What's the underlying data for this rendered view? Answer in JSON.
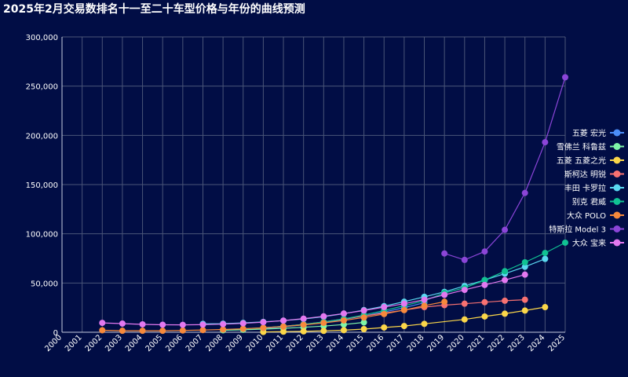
{
  "chart_data": {
    "type": "line",
    "title": "2025年2月交易数排名十一至二十车型价格与年份的曲线预测",
    "x": [
      2000,
      2001,
      2002,
      2003,
      2004,
      2005,
      2006,
      2007,
      2008,
      2009,
      2010,
      2011,
      2012,
      2013,
      2014,
      2015,
      2016,
      2017,
      2018,
      2019,
      2020,
      2021,
      2022,
      2023,
      2024,
      2025
    ],
    "xlim": [
      2000,
      2025
    ],
    "ylim": [
      0,
      300000
    ],
    "yticks": [
      0,
      50000,
      100000,
      150000,
      200000,
      250000,
      300000
    ],
    "ytick_labels": [
      "0",
      "50,000",
      "100,000",
      "150,000",
      "200,000",
      "250,000",
      "300,000"
    ],
    "grid": true,
    "legend_position": "right",
    "series": [
      {
        "name": "五菱 宏光",
        "color": "#4b8df8",
        "points": [
          [
            2010,
            4000
          ],
          [
            2011,
            5500
          ],
          [
            2012,
            7500
          ],
          [
            2013,
            10000
          ],
          [
            2014,
            13000
          ],
          [
            2015,
            16500
          ],
          [
            2016,
            20500
          ],
          [
            2017,
            25000
          ],
          [
            2018,
            30000
          ]
        ]
      },
      {
        "name": "雪佛兰 科鲁兹",
        "color": "#7ef5a8",
        "points": [
          [
            2008,
            2000
          ],
          [
            2009,
            2500
          ],
          [
            2010,
            3200
          ],
          [
            2011,
            4000
          ],
          [
            2012,
            5000
          ],
          [
            2013,
            6200
          ],
          [
            2014,
            7800
          ],
          [
            2015,
            10000
          ]
        ]
      },
      {
        "name": "五菱 五菱之光",
        "color": "#fbd649",
        "points": [
          [
            2010,
            300
          ],
          [
            2011,
            600
          ],
          [
            2012,
            900
          ],
          [
            2013,
            1400
          ],
          [
            2014,
            2100
          ],
          [
            2015,
            3200
          ],
          [
            2016,
            4800
          ],
          [
            2017,
            6300
          ],
          [
            2018,
            8500
          ],
          [
            2020,
            13000
          ],
          [
            2021,
            16000
          ],
          [
            2022,
            18800
          ],
          [
            2023,
            22000
          ],
          [
            2024,
            25500
          ]
        ]
      },
      {
        "name": "斯柯达 明锐",
        "color": "#f87171",
        "points": [
          [
            2010,
            4500
          ],
          [
            2011,
            6000
          ],
          [
            2012,
            8000
          ],
          [
            2013,
            10500
          ],
          [
            2014,
            13500
          ],
          [
            2015,
            16500
          ],
          [
            2016,
            19500
          ],
          [
            2017,
            22500
          ],
          [
            2018,
            25500
          ],
          [
            2019,
            27500
          ],
          [
            2020,
            29000
          ],
          [
            2021,
            30500
          ],
          [
            2022,
            32000
          ],
          [
            2023,
            33000
          ]
        ]
      },
      {
        "name": "丰田 卡罗拉",
        "color": "#5ad8f0",
        "points": [
          [
            2007,
            8500
          ],
          [
            2008,
            8700
          ],
          [
            2009,
            9500
          ],
          [
            2010,
            10500
          ],
          [
            2011,
            11800
          ],
          [
            2012,
            13500
          ],
          [
            2013,
            15800
          ],
          [
            2014,
            18800
          ],
          [
            2015,
            22500
          ],
          [
            2016,
            26500
          ],
          [
            2017,
            31000
          ],
          [
            2018,
            36000
          ],
          [
            2019,
            41000
          ],
          [
            2020,
            47000
          ],
          [
            2021,
            53000
          ],
          [
            2022,
            59500
          ],
          [
            2023,
            66500
          ],
          [
            2024,
            74500
          ]
        ]
      },
      {
        "name": "别克 君威",
        "color": "#10c293",
        "points": [
          [
            2009,
            3500
          ],
          [
            2010,
            4500
          ],
          [
            2011,
            6000
          ],
          [
            2012,
            8000
          ],
          [
            2013,
            10500
          ],
          [
            2014,
            13500
          ],
          [
            2015,
            17500
          ],
          [
            2016,
            22000
          ],
          [
            2017,
            27000
          ],
          [
            2018,
            32000
          ],
          [
            2019,
            40000
          ],
          [
            2020,
            45000
          ],
          [
            2021,
            53000
          ],
          [
            2022,
            62000
          ],
          [
            2023,
            71000
          ],
          [
            2024,
            80500
          ],
          [
            2025,
            91000
          ]
        ]
      },
      {
        "name": "大众 POLO",
        "color": "#f7893c",
        "points": [
          [
            2002,
            2000
          ],
          [
            2003,
            1500
          ],
          [
            2004,
            1500
          ],
          [
            2005,
            1500
          ],
          [
            2006,
            1800
          ],
          [
            2007,
            2200
          ],
          [
            2008,
            2800
          ],
          [
            2009,
            3500
          ],
          [
            2010,
            4500
          ],
          [
            2011,
            5800
          ],
          [
            2012,
            7500
          ],
          [
            2013,
            9500
          ],
          [
            2014,
            12000
          ],
          [
            2015,
            15000
          ],
          [
            2016,
            18500
          ],
          [
            2017,
            22500
          ],
          [
            2018,
            27000
          ],
          [
            2019,
            31000
          ]
        ]
      },
      {
        "name": "特斯拉 Model 3",
        "color": "#8b45d8",
        "points": [
          [
            2019,
            80000
          ],
          [
            2020,
            73500
          ],
          [
            2021,
            82000
          ],
          [
            2022,
            104000
          ],
          [
            2023,
            141500
          ],
          [
            2024,
            193000
          ],
          [
            2025,
            259000
          ]
        ]
      },
      {
        "name": "大众 宝来",
        "color": "#e378f0",
        "points": [
          [
            2002,
            9500
          ],
          [
            2003,
            8800
          ],
          [
            2004,
            8000
          ],
          [
            2005,
            7600
          ],
          [
            2006,
            7500
          ],
          [
            2007,
            7700
          ],
          [
            2008,
            8200
          ],
          [
            2009,
            9000
          ],
          [
            2010,
            10200
          ],
          [
            2011,
            11800
          ],
          [
            2012,
            13800
          ],
          [
            2013,
            16200
          ],
          [
            2014,
            19000
          ],
          [
            2015,
            22000
          ],
          [
            2016,
            25500
          ],
          [
            2017,
            29000
          ],
          [
            2018,
            33000
          ],
          [
            2019,
            38000
          ],
          [
            2020,
            43000
          ],
          [
            2021,
            48000
          ],
          [
            2022,
            53000
          ],
          [
            2023,
            58500
          ]
        ]
      }
    ]
  }
}
